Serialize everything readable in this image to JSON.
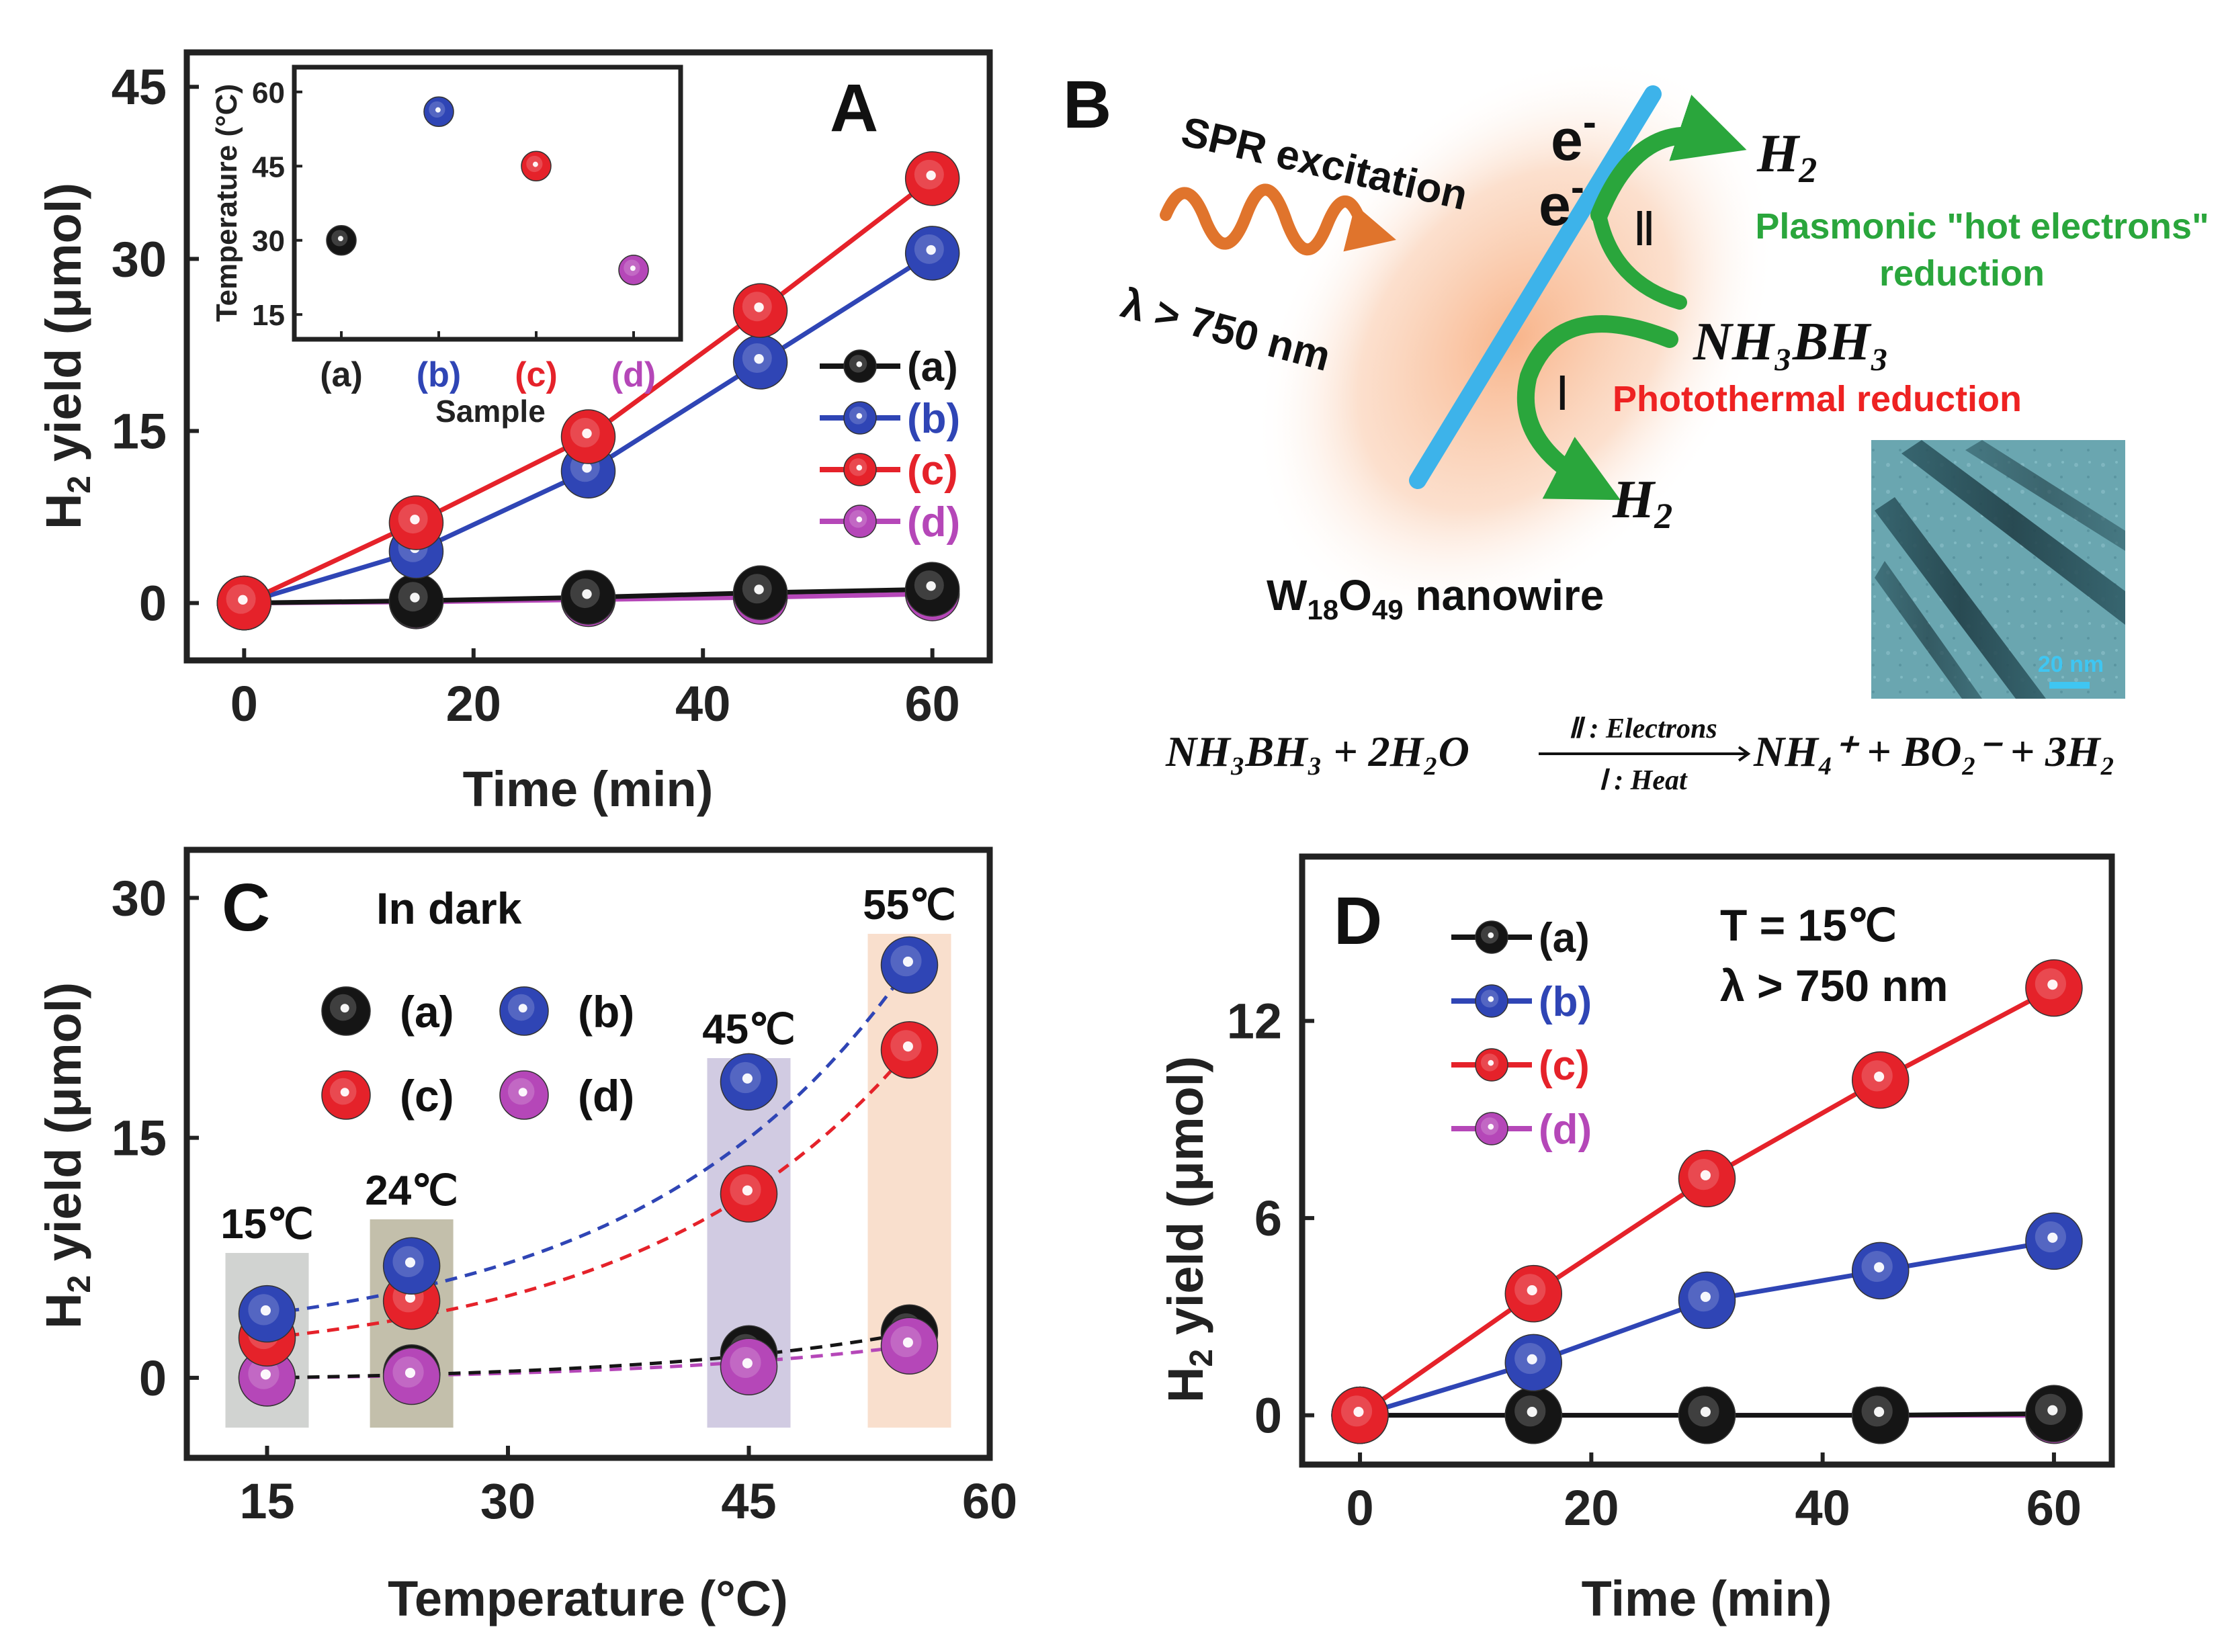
{
  "colors": {
    "a": "#151515",
    "b": "#2f45b5",
    "c": "#e5222a",
    "d": "#b547b8",
    "green": "#2aa63c",
    "red_text": "#ee2222",
    "wire": "#3db3ea",
    "glow": "#f7b186",
    "wave": "#e0742c",
    "tem": "#5b9aa6"
  },
  "chart_data": [
    {
      "panel": "A",
      "type": "line",
      "letter": "A",
      "xlabel": "Time (min)",
      "ylabel_prefix": "H",
      "ylabel_sub": "2",
      "ylabel_suffix": " yield (μmol)",
      "xlim": [
        -5,
        65
      ],
      "ylim": [
        -5,
        48
      ],
      "xticks": [
        0,
        20,
        40,
        60
      ],
      "yticks": [
        0,
        15,
        30,
        45
      ],
      "legend_position": "right",
      "series": [
        {
          "name": "(a)",
          "key": "a",
          "x": [
            0,
            15,
            30,
            45,
            60
          ],
          "y": [
            0,
            0.2,
            0.5,
            0.9,
            1.2
          ]
        },
        {
          "name": "(b)",
          "key": "b",
          "x": [
            0,
            15,
            30,
            45,
            60
          ],
          "y": [
            0,
            4.5,
            11.5,
            21,
            30.5
          ]
        },
        {
          "name": "(c)",
          "key": "c",
          "x": [
            0,
            15,
            30,
            45,
            60
          ],
          "y": [
            0,
            7,
            14.5,
            25.5,
            37
          ]
        },
        {
          "name": "(d)",
          "key": "d",
          "x": [
            0,
            15,
            30,
            45,
            60
          ],
          "y": [
            0,
            0.1,
            0.3,
            0.5,
            0.8
          ]
        }
      ],
      "inset": {
        "type": "scatter",
        "xlabel": "Sample",
        "ylabel": "Temperature (°C)",
        "ylim": [
          10,
          65
        ],
        "yticks": [
          15,
          30,
          45,
          60
        ],
        "categories": [
          "(a)",
          "(b)",
          "(c)",
          "(d)"
        ],
        "keys": [
          "a",
          "b",
          "c",
          "d"
        ],
        "values": [
          30,
          56,
          45,
          24
        ]
      }
    },
    {
      "panel": "C",
      "type": "scatter",
      "letter": "C",
      "title": "In dark",
      "xlabel": "Temperature (°C)",
      "ylabel_prefix": "H",
      "ylabel_sub": "2",
      "ylabel_suffix": " yield (μmol)",
      "xlim": [
        10,
        60
      ],
      "ylim": [
        -5,
        33
      ],
      "xticks": [
        15,
        30,
        45,
        60
      ],
      "yticks": [
        0,
        15,
        30
      ],
      "legend_position": "top-left",
      "bands": [
        {
          "label": "15℃",
          "center": 15,
          "color": "#c9cbc9"
        },
        {
          "label": "24℃",
          "center": 24,
          "color": "#b8b49c"
        },
        {
          "label": "45℃",
          "center": 45,
          "color": "#c9c2dd"
        },
        {
          "label": "55℃",
          "center": 55,
          "color": "#f8d9c4"
        }
      ],
      "series": [
        {
          "name": "(a)",
          "key": "a",
          "x": [
            15,
            24,
            45,
            55
          ],
          "y": [
            0,
            0.3,
            1.5,
            2.8
          ]
        },
        {
          "name": "(b)",
          "key": "b",
          "x": [
            15,
            24,
            45,
            55
          ],
          "y": [
            4,
            7,
            18.5,
            25.8
          ]
        },
        {
          "name": "(c)",
          "key": "c",
          "x": [
            15,
            24,
            45,
            55
          ],
          "y": [
            2.5,
            4.8,
            11.5,
            20.5
          ]
        },
        {
          "name": "(d)",
          "key": "d",
          "x": [
            15,
            24,
            45,
            55
          ],
          "y": [
            0,
            0.1,
            0.7,
            2
          ]
        }
      ]
    },
    {
      "panel": "D",
      "type": "line",
      "letter": "D",
      "xlabel": "Time (min)",
      "ylabel_prefix": "H",
      "ylabel_sub": "2",
      "ylabel_suffix": " yield (μmol)",
      "annotation_line1": "T = 15℃",
      "annotation_line2": "λ > 750 nm",
      "xlim": [
        -5,
        65
      ],
      "ylim": [
        -1.5,
        17
      ],
      "xticks": [
        0,
        20,
        40,
        60
      ],
      "yticks": [
        0,
        6,
        12
      ],
      "legend_position": "top-left",
      "series": [
        {
          "name": "(a)",
          "key": "a",
          "x": [
            0,
            15,
            30,
            45,
            60
          ],
          "y": [
            0,
            0,
            0,
            0,
            0.05
          ]
        },
        {
          "name": "(b)",
          "key": "b",
          "x": [
            0,
            15,
            30,
            45,
            60
          ],
          "y": [
            0,
            1.6,
            3.5,
            4.4,
            5.3
          ]
        },
        {
          "name": "(c)",
          "key": "c",
          "x": [
            0,
            15,
            30,
            45,
            60
          ],
          "y": [
            0,
            3.7,
            7.2,
            10.2,
            13
          ]
        },
        {
          "name": "(d)",
          "key": "d",
          "x": [
            0,
            15,
            30,
            45,
            60
          ],
          "y": [
            0,
            0,
            0,
            0,
            0
          ]
        }
      ]
    }
  ],
  "diagram": {
    "letter": "B",
    "spr_label": "SPR excitation",
    "lambda_label": "λ > 750 nm",
    "electron": "e",
    "electron_sup": "-",
    "h2_main": "H",
    "h2_sub": "2",
    "roman_two": "Ⅱ",
    "roman_one": "Ⅰ",
    "plasmonic_line1": "Plasmonic \"hot electrons\"",
    "plasmonic_line2": "reduction",
    "nh3bh3": "NH₃BH₃",
    "photothermal": "Photothermal reduction",
    "nanowire_label_w": "W",
    "nanowire_label_w_sub": "18",
    "nanowire_label_o": "O",
    "nanowire_label_o_sub": "49",
    "nanowire_label_rest": " nanowire",
    "scale_bar": "20 nm",
    "equation_left": "NH₃BH₃ + 2H₂O",
    "equation_over": "Ⅱ : Electrons",
    "equation_under": "Ⅰ : Heat",
    "equation_right": "NH₄⁺ + BO₂⁻ + 3H₂"
  }
}
